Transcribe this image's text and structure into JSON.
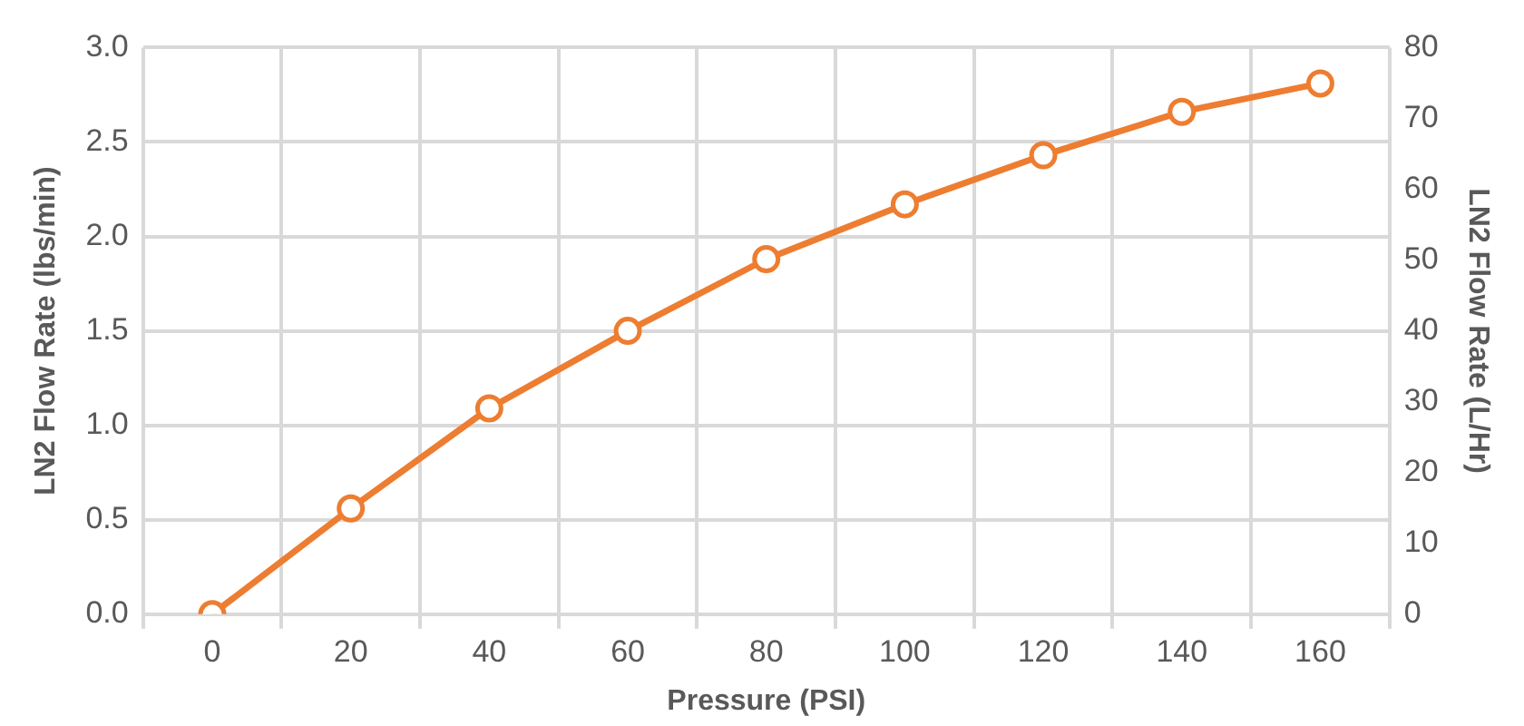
{
  "chart_data": {
    "type": "line",
    "xlabel": "Pressure (PSI)",
    "ylabel": "LN2 Flow Rate (lbs/min)",
    "y2label": "LN2 Flow Rate (L/Hr)",
    "categories": [
      "0",
      "20",
      "40",
      "60",
      "80",
      "100",
      "120",
      "140",
      "160"
    ],
    "series": [
      {
        "color": "#ed7d31",
        "values": [
          0,
          0.56,
          1.09,
          1.5,
          1.88,
          2.17,
          2.43,
          2.66,
          2.81
        ]
      }
    ],
    "ylim": [
      0,
      3
    ],
    "yticks": [
      {
        "value": 0,
        "label": "0.0"
      },
      0.5,
      {
        "value": 1,
        "label": "1.0"
      },
      1.5,
      {
        "value": 2,
        "label": "2.0"
      },
      2.5,
      {
        "value": 3,
        "label": "3.0"
      }
    ],
    "y2lim": [
      0,
      80
    ],
    "y2ticks": [
      0,
      10,
      20,
      30,
      40,
      50,
      60,
      70,
      80
    ],
    "grid": true,
    "legend": false,
    "marker": "circle",
    "line_style": "solid"
  }
}
